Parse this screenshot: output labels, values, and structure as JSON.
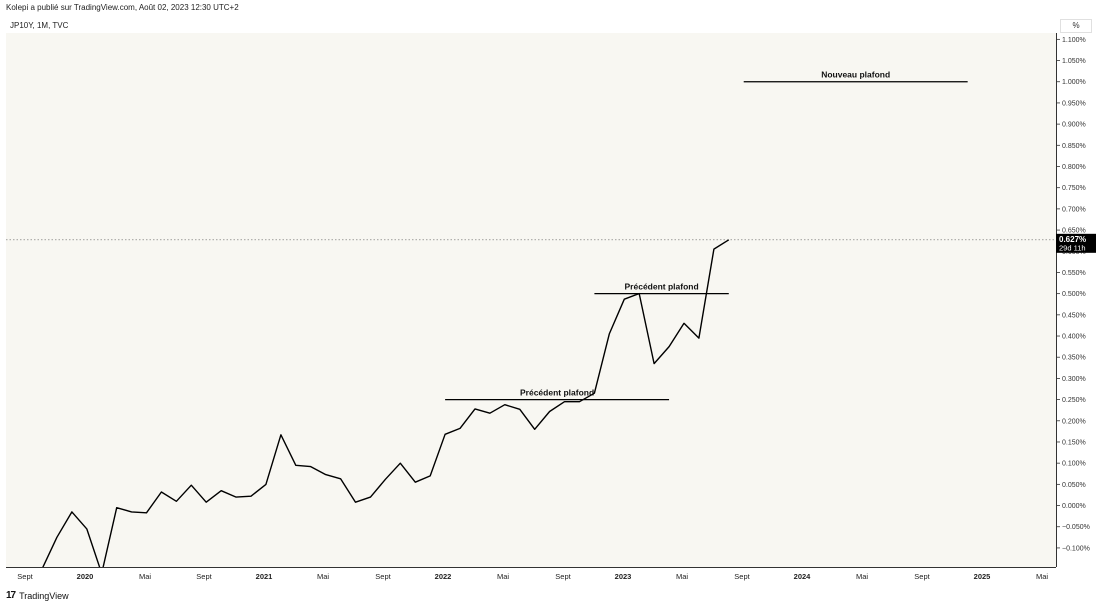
{
  "header": {
    "published_by": "Kolepi a publié sur TradingView.com, Août 02, 2023 12:30 UTC+2",
    "symbol": "JP10Y, 1M, TVC",
    "unit": "%"
  },
  "price_label": {
    "value": "0.627%",
    "countdown": "29d 11h"
  },
  "footer": {
    "logo": "17",
    "brand": "TradingView"
  },
  "colors": {
    "background": "#f8f7f2",
    "line": "#000000",
    "dotted": "#6b6b6b",
    "price_label_bg": "#000000"
  },
  "chart_data": {
    "type": "line",
    "title": "",
    "xlabel": "",
    "ylabel": "",
    "ylim": [
      -0.145,
      1.115
    ],
    "grid": false,
    "series": [
      {
        "values": [
          -0.15,
          -0.075,
          -0.015,
          -0.055,
          -0.16,
          -0.005,
          -0.015,
          -0.017,
          0.032,
          0.01,
          0.048,
          0.008,
          0.035,
          0.02,
          0.022,
          0.05,
          0.167,
          0.095,
          0.092,
          0.073,
          0.063,
          0.008,
          0.02,
          0.062,
          0.1,
          0.055,
          0.07,
          0.168,
          0.182,
          0.228,
          0.218,
          0.238,
          0.227,
          0.18,
          0.222,
          0.245,
          0.245,
          0.265,
          0.405,
          0.487,
          0.5,
          0.335,
          0.375,
          0.43,
          0.395,
          0.605,
          0.627
        ]
      }
    ],
    "x_start": "2019-08",
    "x_ticks": [
      "Sept",
      "2020",
      "Mai",
      "Sept",
      "2021",
      "Mai",
      "Sept",
      "2022",
      "Mai",
      "Sept",
      "2023",
      "Mai",
      "Sept",
      "2024",
      "Mai",
      "Sept",
      "2025",
      "Mai"
    ],
    "y_ticks": [
      -0.1,
      -0.05,
      0.0,
      0.05,
      0.1,
      0.15,
      0.2,
      0.25,
      0.3,
      0.35,
      0.4,
      0.45,
      0.5,
      0.55,
      0.6,
      0.65,
      0.7,
      0.75,
      0.8,
      0.85,
      0.9,
      0.95,
      1.0,
      1.05,
      1.1
    ],
    "y_tick_labels": [
      "−0.100%",
      "−0.050%",
      "0.000%",
      "0.050%",
      "0.100%",
      "0.150%",
      "0.200%",
      "0.250%",
      "0.300%",
      "0.350%",
      "0.400%",
      "0.450%",
      "0.500%",
      "0.550%",
      "0.600%",
      "0.650%",
      "0.700%",
      "0.750%",
      "0.800%",
      "0.850%",
      "0.900%",
      "0.950%",
      "1.000%",
      "1.050%",
      "1.100%"
    ],
    "last_value": 0.627,
    "annotations": [
      {
        "text": "Précédent plafond",
        "y": 0.25,
        "x_from": "2021-11",
        "x_to": "2023-02"
      },
      {
        "text": "Précédent plafond",
        "y": 0.5,
        "x_from": "2022-09",
        "x_to": "2023-06"
      },
      {
        "text": "Nouveau plafond",
        "y": 1.0,
        "x_from": "2023-07",
        "x_to": "2024-10"
      }
    ]
  }
}
